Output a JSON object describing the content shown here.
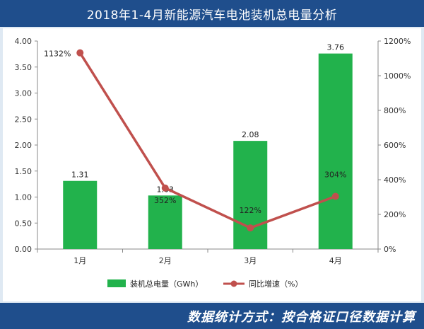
{
  "title": "2018年1-4月新能源汽车电池装机总电量分析",
  "footer": "数据统计方式：按合格证口径数据计算",
  "chart_data": {
    "type": "bar+line",
    "categories": [
      "1月",
      "2月",
      "3月",
      "4月"
    ],
    "series": [
      {
        "name": "装机总电量（GWh）",
        "type": "bar",
        "axis": "left",
        "values": [
          1.31,
          1.03,
          2.08,
          3.76
        ],
        "labels": [
          "1.31",
          "1.03",
          "2.08",
          "3.76"
        ],
        "color": "#22b24c"
      },
      {
        "name": "同比增速（%）",
        "type": "line",
        "axis": "right",
        "values": [
          1132,
          352,
          122,
          304
        ],
        "labels": [
          "1132%",
          "352%",
          "122%",
          "304%"
        ],
        "color": "#c0504d"
      }
    ],
    "y_left": {
      "min": 0,
      "max": 4,
      "ticks": [
        "0.00",
        "0.50",
        "1.00",
        "1.50",
        "2.00",
        "2.50",
        "3.00",
        "3.50",
        "4.00"
      ]
    },
    "y_right": {
      "min": 0,
      "max": 1200,
      "ticks": [
        "0%",
        "200%",
        "400%",
        "600%",
        "800%",
        "1000%",
        "1200%"
      ]
    },
    "grid": false,
    "legend_position": "bottom"
  }
}
